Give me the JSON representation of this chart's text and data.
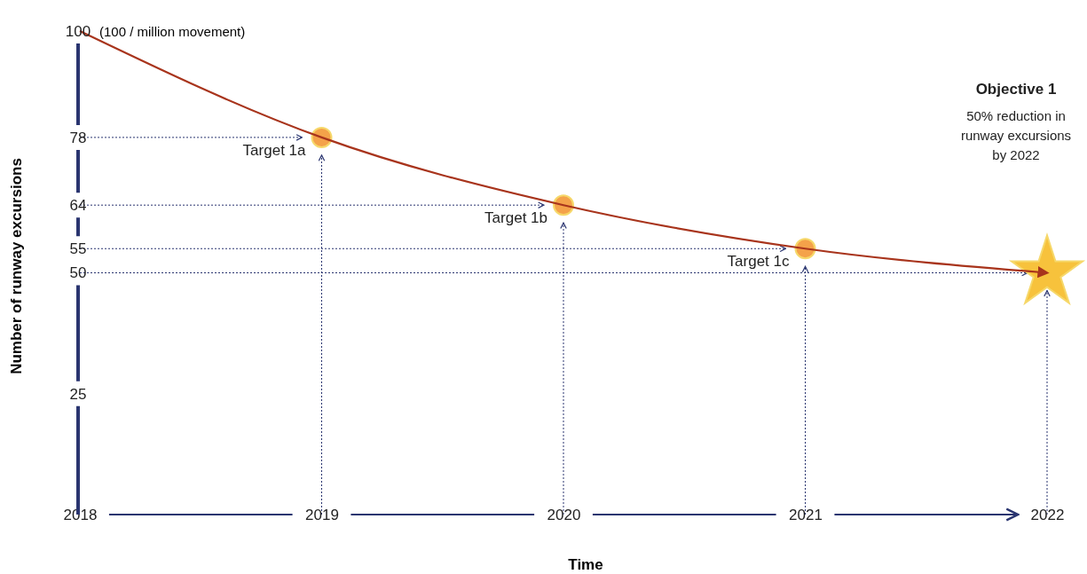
{
  "chart_data": {
    "type": "line",
    "ylabel": "Number of runway excursions",
    "xlabel": "Time",
    "x": [
      2018,
      2019,
      2020,
      2021,
      2022
    ],
    "xlim": [
      2018,
      2022
    ],
    "xticks": [
      2018,
      2019,
      2020,
      2021,
      2022
    ],
    "ylim": [
      0,
      100
    ],
    "yticks": [
      25,
      50,
      55,
      64,
      78,
      100
    ],
    "grid": false,
    "series": [
      {
        "color": "#a8341c",
        "values": [
          100,
          78,
          64,
          55,
          50
        ],
        "marker": "none"
      },
      {
        "type": "scatter",
        "color": "#f4a24a",
        "x": [
          2019,
          2020,
          2021
        ],
        "values": [
          78,
          64,
          55
        ],
        "marker": "circle"
      },
      {
        "type": "scatter",
        "color": "#f7c23c",
        "x": [
          2022
        ],
        "values": [
          50
        ],
        "marker": "star"
      }
    ],
    "ref_lines": [
      {
        "axis": "y",
        "value": 78,
        "color": "#2a3570",
        "line_style": "dotted"
      },
      {
        "axis": "y",
        "value": 64,
        "color": "#2a3570",
        "line_style": "dotted"
      },
      {
        "axis": "y",
        "value": 55,
        "color": "#2a3570",
        "line_style": "dotted"
      },
      {
        "axis": "y",
        "value": 50,
        "color": "#2a3570",
        "line_style": "dotted"
      },
      {
        "axis": "x",
        "value": 2019,
        "color": "#2a3570",
        "line_style": "dotted"
      },
      {
        "axis": "x",
        "value": 2020,
        "color": "#2a3570",
        "line_style": "dotted"
      },
      {
        "axis": "x",
        "value": 2021,
        "color": "#2a3570",
        "line_style": "dotted"
      },
      {
        "axis": "x",
        "value": 2022,
        "color": "#2a3570",
        "line_style": "dotted"
      }
    ],
    "annotations": [
      {
        "text": "(100 / million movement)",
        "x": 2018,
        "y": 100
      },
      {
        "text": "Target 1a",
        "x": 2019,
        "y": 78
      },
      {
        "text": "Target 1b",
        "x": 2020,
        "y": 64
      },
      {
        "text": "Target 1c",
        "x": 2021,
        "y": 55
      },
      "Objective 1",
      "50% reduction in\nrunway excursions\nby 2022"
    ]
  }
}
